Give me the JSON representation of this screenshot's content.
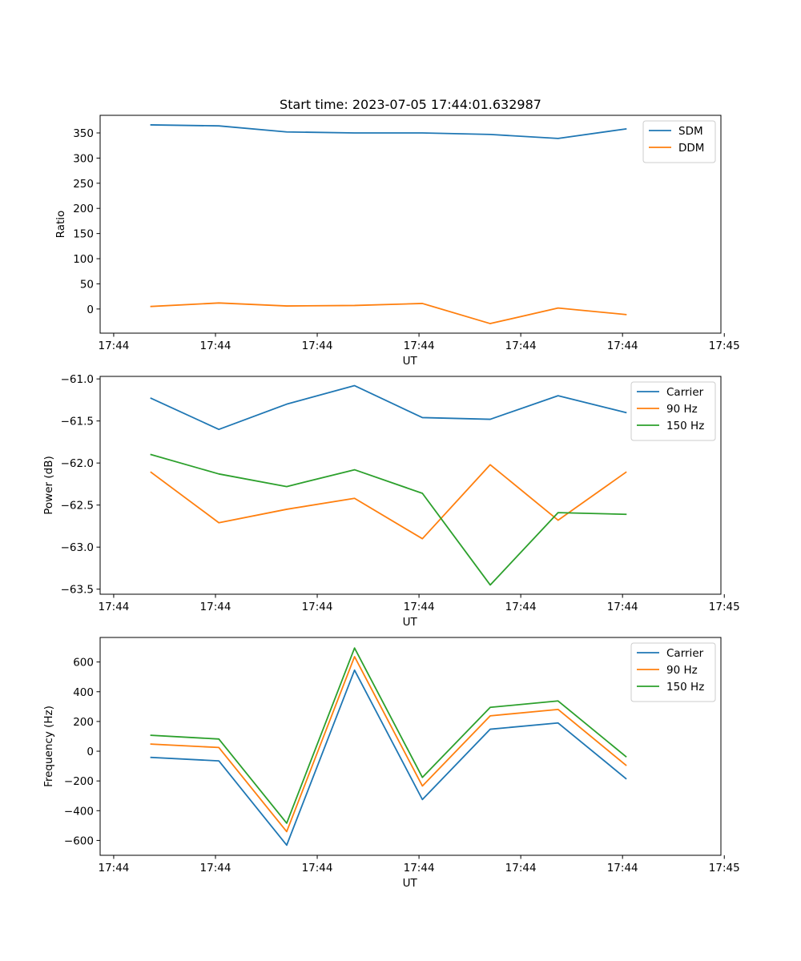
{
  "figure_title": "Start time: 2023-07-05 17:44:01.632987",
  "chart_data": [
    {
      "type": "line",
      "title": "Start time: 2023-07-05 17:44:01.632987",
      "xlabel": "UT",
      "ylabel": "Ratio",
      "x": [
        1,
        2,
        3,
        4,
        5,
        6,
        7,
        8
      ],
      "xlim": [
        0.25,
        9.4
      ],
      "x_ticks": [
        0.45,
        1.95,
        3.45,
        4.95,
        6.45,
        7.95,
        9.45
      ],
      "x_tick_labels": [
        "17:44",
        "17:44",
        "17:44",
        "17:44",
        "17:44",
        "17:44",
        "17:45"
      ],
      "ylim": [
        -48,
        385
      ],
      "y_ticks": [
        0,
        50,
        100,
        150,
        200,
        250,
        300,
        350
      ],
      "y_tick_labels": [
        "0",
        "50",
        "100",
        "150",
        "200",
        "250",
        "300",
        "350"
      ],
      "legend_position": "upper-right",
      "series": [
        {
          "name": "SDM",
          "color": "#1f77b4",
          "values": [
            366,
            364,
            352,
            350,
            350,
            347,
            339,
            358
          ]
        },
        {
          "name": "DDM",
          "color": "#ff7f0e",
          "values": [
            5,
            12,
            6,
            7,
            11,
            -29,
            2,
            -11
          ]
        }
      ]
    },
    {
      "type": "line",
      "title": "",
      "xlabel": "UT",
      "ylabel": "Power (dB)",
      "x": [
        1,
        2,
        3,
        4,
        5,
        6,
        7,
        8
      ],
      "xlim": [
        0.25,
        9.4
      ],
      "x_ticks": [
        0.45,
        1.95,
        3.45,
        4.95,
        6.45,
        7.95,
        9.45
      ],
      "x_tick_labels": [
        "17:44",
        "17:44",
        "17:44",
        "17:44",
        "17:44",
        "17:44",
        "17:45"
      ],
      "ylim": [
        -63.56,
        -60.97
      ],
      "y_ticks": [
        -63.5,
        -63.0,
        -62.5,
        -62.0,
        -61.5,
        -61.0
      ],
      "y_tick_labels": [
        "−63.5",
        "−63.0",
        "−62.5",
        "−62.0",
        "−61.5",
        "−61.0"
      ],
      "legend_position": "upper-right",
      "series": [
        {
          "name": "Carrier",
          "color": "#1f77b4",
          "values": [
            -61.23,
            -61.6,
            -61.3,
            -61.08,
            -61.46,
            -61.48,
            -61.2,
            -61.4
          ]
        },
        {
          "name": "90 Hz",
          "color": "#ff7f0e",
          "values": [
            -62.11,
            -62.71,
            -62.55,
            -62.42,
            -62.9,
            -62.02,
            -62.68,
            -62.11
          ]
        },
        {
          "name": "150 Hz",
          "color": "#2ca02c",
          "values": [
            -61.9,
            -62.13,
            -62.28,
            -62.08,
            -62.36,
            -63.45,
            -62.59,
            -62.61
          ]
        }
      ]
    },
    {
      "type": "line",
      "title": "",
      "xlabel": "UT",
      "ylabel": "Frequency (Hz)",
      "x": [
        1,
        2,
        3,
        4,
        5,
        6,
        7,
        8
      ],
      "xlim": [
        0.25,
        9.4
      ],
      "x_ticks": [
        0.45,
        1.95,
        3.45,
        4.95,
        6.45,
        7.95,
        9.45
      ],
      "x_tick_labels": [
        "17:44",
        "17:44",
        "17:44",
        "17:44",
        "17:44",
        "17:44",
        "17:45"
      ],
      "ylim": [
        -700,
        765
      ],
      "y_ticks": [
        -600,
        -400,
        -200,
        0,
        200,
        400,
        600
      ],
      "y_tick_labels": [
        "−600",
        "−400",
        "−200",
        "0",
        "200",
        "400",
        "600"
      ],
      "legend_position": "upper-right",
      "series": [
        {
          "name": "Carrier",
          "color": "#1f77b4",
          "values": [
            -42,
            -65,
            -632,
            545,
            -325,
            148,
            190,
            -184
          ]
        },
        {
          "name": "90 Hz",
          "color": "#ff7f0e",
          "values": [
            48,
            25,
            -541,
            636,
            -234,
            238,
            281,
            -94
          ]
        },
        {
          "name": "150 Hz",
          "color": "#2ca02c",
          "values": [
            107,
            82,
            -484,
            694,
            -176,
            295,
            338,
            -36
          ]
        }
      ]
    }
  ]
}
